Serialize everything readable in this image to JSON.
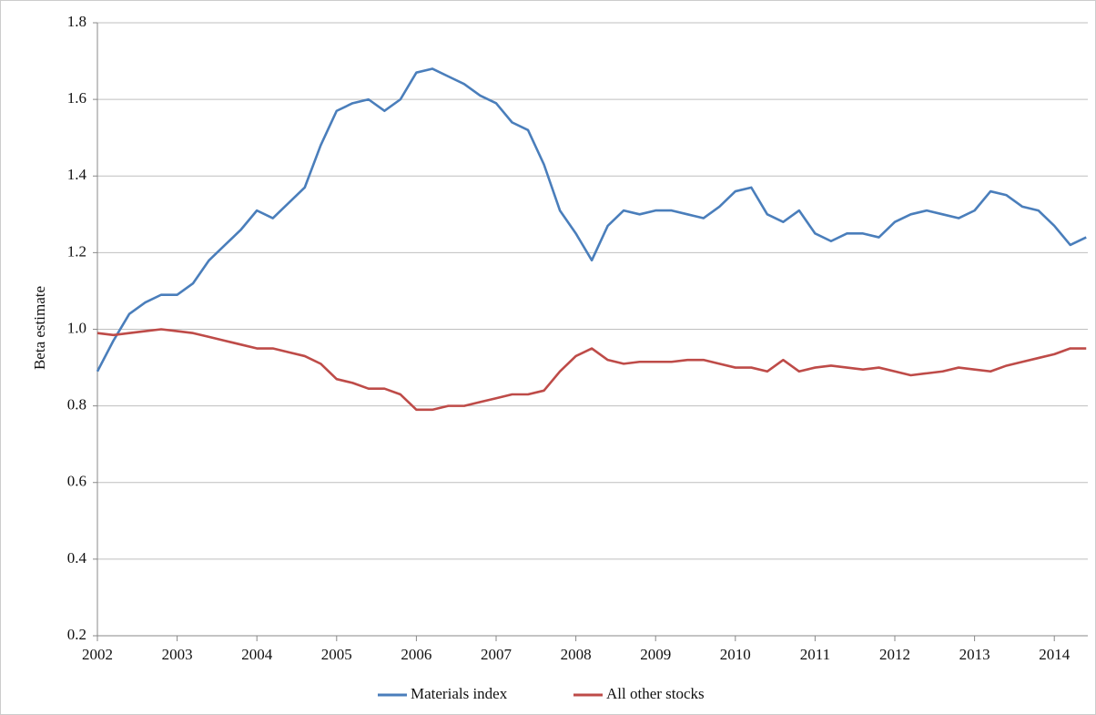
{
  "chart_data": {
    "type": "line",
    "y_label": "Beta estimate",
    "x": [
      2002.0,
      2002.2,
      2002.4,
      2002.6,
      2002.8,
      2003.0,
      2003.2,
      2003.4,
      2003.6,
      2003.8,
      2004.0,
      2004.2,
      2004.4,
      2004.6,
      2004.8,
      2005.0,
      2005.2,
      2005.4,
      2005.6,
      2005.8,
      2006.0,
      2006.2,
      2006.4,
      2006.6,
      2006.8,
      2007.0,
      2007.2,
      2007.4,
      2007.6,
      2007.8,
      2008.0,
      2008.2,
      2008.4,
      2008.6,
      2008.8,
      2009.0,
      2009.2,
      2009.4,
      2009.6,
      2009.8,
      2010.0,
      2010.2,
      2010.4,
      2010.6,
      2010.8,
      2011.0,
      2011.2,
      2011.4,
      2011.6,
      2011.8,
      2012.0,
      2012.2,
      2012.4,
      2012.6,
      2012.8,
      2013.0,
      2013.2,
      2013.4,
      2013.6,
      2013.8,
      2014.0,
      2014.2,
      2014.4
    ],
    "series": [
      {
        "name": "Materials index",
        "color": "#4a7ebb",
        "values": [
          0.89,
          0.97,
          1.04,
          1.07,
          1.09,
          1.09,
          1.12,
          1.18,
          1.22,
          1.26,
          1.31,
          1.29,
          1.33,
          1.37,
          1.48,
          1.57,
          1.59,
          1.6,
          1.57,
          1.6,
          1.67,
          1.68,
          1.66,
          1.64,
          1.61,
          1.59,
          1.54,
          1.52,
          1.43,
          1.31,
          1.25,
          1.18,
          1.27,
          1.31,
          1.3,
          1.31,
          1.31,
          1.3,
          1.29,
          1.32,
          1.36,
          1.37,
          1.3,
          1.28,
          1.31,
          1.25,
          1.23,
          1.25,
          1.25,
          1.24,
          1.28,
          1.3,
          1.31,
          1.3,
          1.29,
          1.31,
          1.36,
          1.35,
          1.32,
          1.31,
          1.27,
          1.22,
          1.24
        ]
      },
      {
        "name": "All other stocks",
        "color": "#be4b48",
        "values": [
          0.99,
          0.985,
          0.99,
          0.995,
          1.0,
          0.995,
          0.99,
          0.98,
          0.97,
          0.96,
          0.95,
          0.95,
          0.94,
          0.93,
          0.91,
          0.87,
          0.86,
          0.845,
          0.845,
          0.83,
          0.79,
          0.79,
          0.8,
          0.8,
          0.81,
          0.82,
          0.83,
          0.83,
          0.84,
          0.89,
          0.93,
          0.95,
          0.92,
          0.91,
          0.915,
          0.915,
          0.915,
          0.92,
          0.92,
          0.91,
          0.9,
          0.9,
          0.89,
          0.92,
          0.89,
          0.9,
          0.905,
          0.9,
          0.895,
          0.9,
          0.89,
          0.88,
          0.885,
          0.89,
          0.9,
          0.895,
          0.89,
          0.905,
          0.915,
          0.925,
          0.935,
          0.95,
          0.95
        ]
      }
    ],
    "xlim": [
      2002,
      2014.42
    ],
    "xticks": [
      2002,
      2003,
      2004,
      2005,
      2006,
      2007,
      2008,
      2009,
      2010,
      2011,
      2012,
      2013,
      2014
    ],
    "ylim": [
      0.2,
      1.8
    ],
    "yticks": [
      0.2,
      0.4,
      0.6,
      0.8,
      {
        "value": 1,
        "label": "1.0"
      },
      1.2,
      1.4,
      1.6,
      1.8
    ],
    "grid": true,
    "legend": "bottom"
  }
}
